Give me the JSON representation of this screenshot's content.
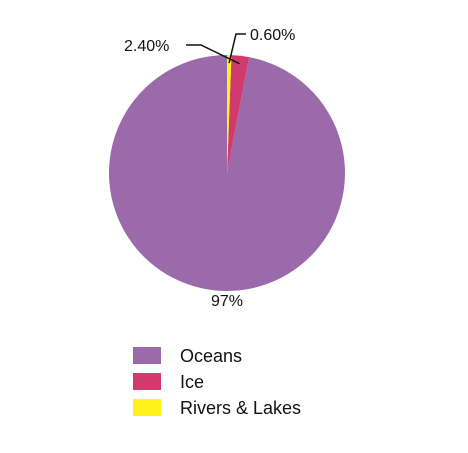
{
  "chart_data": {
    "type": "pie",
    "categories": [
      "Oceans",
      "Ice",
      "Rivers & Lakes"
    ],
    "values": [
      97,
      2.4,
      0.6
    ],
    "data_labels": [
      "97%",
      "2.40%",
      "0.60%"
    ],
    "colors": [
      "#9a6aab",
      "#d03a6c",
      "#fff21a"
    ],
    "legend": {
      "position": "bottom-left",
      "entries": [
        "Oceans",
        "Ice",
        "Rivers & Lakes"
      ]
    },
    "start_angle": "top",
    "direction": "counterclockwise"
  }
}
